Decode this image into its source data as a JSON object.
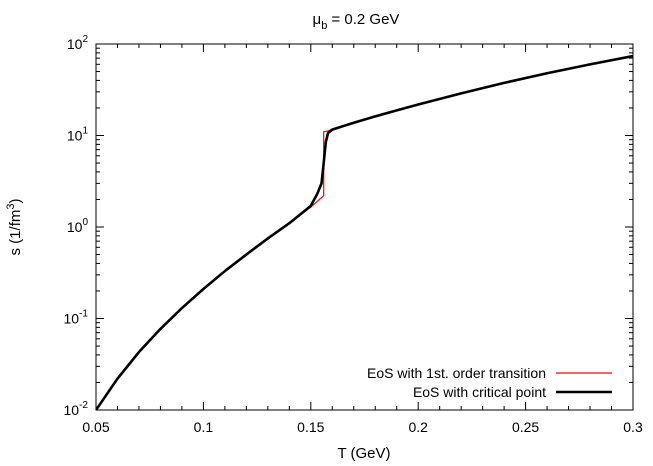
{
  "chart_data": {
    "type": "line",
    "title": "μb = 0.2 GeV",
    "title_parts": {
      "symbol": "μ",
      "subscript": "b",
      "rest": " = 0.2 GeV"
    },
    "xlabel": "T (GeV)",
    "ylabel": "s (1/fm3)",
    "ylabel_parts": {
      "prefix": "s (1/fm",
      "superscript": "3",
      "suffix": ")"
    },
    "xlim": [
      0.05,
      0.3
    ],
    "ylim": [
      0.01,
      100
    ],
    "yscale": "log",
    "grid": false,
    "legend_position": "bottom-right",
    "x_ticks": [
      {
        "value": 0.05,
        "label": "0.05"
      },
      {
        "value": 0.1,
        "label": "0.1"
      },
      {
        "value": 0.15,
        "label": "0.15"
      },
      {
        "value": 0.2,
        "label": "0.2"
      },
      {
        "value": 0.25,
        "label": "0.25"
      },
      {
        "value": 0.3,
        "label": "0.3"
      }
    ],
    "y_ticks": [
      {
        "value": 0.01,
        "base": "10",
        "exp": "-2"
      },
      {
        "value": 0.1,
        "base": "10",
        "exp": "-1"
      },
      {
        "value": 1,
        "base": "10",
        "exp": "0"
      },
      {
        "value": 10,
        "base": "10",
        "exp": "1"
      },
      {
        "value": 100,
        "base": "10",
        "exp": "2"
      }
    ],
    "series": [
      {
        "name": "EoS with 1st. order transition",
        "color": "#ff0000",
        "line_width": 1.2,
        "x": [
          0.05,
          0.06,
          0.07,
          0.08,
          0.09,
          0.1,
          0.11,
          0.12,
          0.13,
          0.14,
          0.15,
          0.156,
          0.156,
          0.158,
          0.16,
          0.17,
          0.18,
          0.19,
          0.2,
          0.22,
          0.24,
          0.26,
          0.28,
          0.3
        ],
        "y": [
          0.01,
          0.022,
          0.043,
          0.077,
          0.13,
          0.21,
          0.33,
          0.5,
          0.75,
          1.1,
          1.65,
          2.2,
          11.0,
          11.2,
          11.8,
          13.8,
          16.2,
          18.8,
          21.8,
          28.9,
          37.6,
          47.9,
          59.9,
          73.8
        ]
      },
      {
        "name": "EoS with critical point",
        "color": "#000000",
        "line_width": 2.6,
        "x": [
          0.05,
          0.06,
          0.07,
          0.08,
          0.09,
          0.1,
          0.11,
          0.12,
          0.13,
          0.14,
          0.15,
          0.153,
          0.155,
          0.156,
          0.157,
          0.158,
          0.16,
          0.17,
          0.18,
          0.19,
          0.2,
          0.22,
          0.24,
          0.26,
          0.28,
          0.3
        ],
        "y": [
          0.01,
          0.022,
          0.043,
          0.077,
          0.13,
          0.21,
          0.33,
          0.5,
          0.75,
          1.1,
          1.7,
          2.3,
          3.0,
          5.0,
          8.5,
          10.6,
          11.6,
          13.8,
          16.2,
          18.8,
          21.8,
          28.9,
          37.6,
          47.9,
          59.9,
          73.8
        ]
      }
    ]
  }
}
